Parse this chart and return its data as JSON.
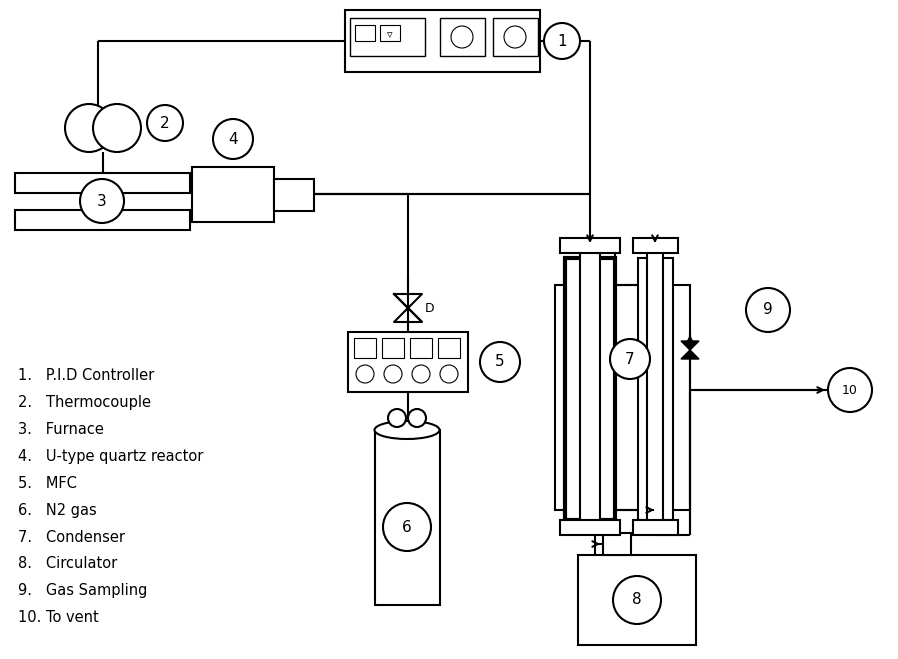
{
  "background": "#ffffff",
  "line_color": "#000000",
  "lw": 1.5,
  "labels": [
    "1.   P.I.D Controller",
    "2.   Thermocouple",
    "3.   Furnace",
    "4.   U-type quartz reactor",
    "5.   MFC",
    "6.   N2 gas",
    "7.   Condenser",
    "8.   Circulator",
    "9.   Gas Sampling",
    "10. To vent"
  ]
}
